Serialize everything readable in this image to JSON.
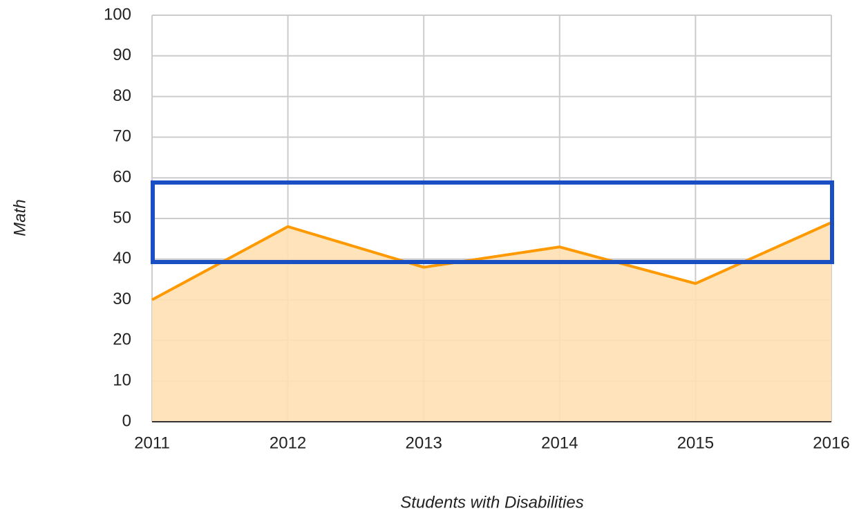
{
  "chart_data": {
    "type": "area",
    "x": [
      2011,
      2012,
      2013,
      2014,
      2015,
      2016
    ],
    "values": [
      30,
      48,
      38,
      43,
      34,
      49
    ],
    "color": "#ff9900",
    "fill": "#ffe0b2",
    "xlim": [
      2011,
      2016
    ],
    "xticks": [
      2011,
      2012,
      2013,
      2014,
      2015,
      2016
    ],
    "ylim": [
      0,
      100
    ],
    "yticks": [
      0,
      10,
      20,
      30,
      40,
      50,
      60,
      70,
      80,
      90,
      100
    ],
    "grid": true,
    "xlabel": "Students with Disabilities",
    "ylabel": "Math"
  }
}
